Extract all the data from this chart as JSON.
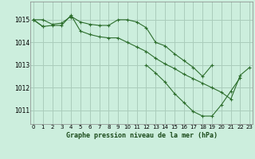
{
  "title": "Graphe pression niveau de la mer (hPa)",
  "bg_color": "#cceedd",
  "grid_color": "#aaccbb",
  "line_color": "#2d6e2d",
  "x_ticks": [
    0,
    1,
    2,
    3,
    4,
    5,
    6,
    7,
    8,
    9,
    10,
    11,
    12,
    13,
    14,
    15,
    16,
    17,
    18,
    19,
    20,
    21,
    22,
    23
  ],
  "y_ticks": [
    1011,
    1012,
    1013,
    1014,
    1015
  ],
  "ylim": [
    1010.4,
    1015.8
  ],
  "xlim": [
    -0.3,
    23.3
  ],
  "line1_x": [
    0,
    1,
    2,
    3,
    4,
    5,
    6,
    7,
    8,
    9,
    10,
    11,
    12,
    13,
    14,
    15,
    16,
    17,
    18,
    19
  ],
  "line1_y": [
    1015.0,
    1015.0,
    1014.8,
    1014.85,
    1015.15,
    1014.9,
    1014.8,
    1014.75,
    1014.75,
    1015.0,
    1015.0,
    1014.9,
    1014.65,
    1014.0,
    1013.85,
    1013.5,
    1013.2,
    1012.9,
    1012.5,
    1013.0
  ],
  "line2_x": [
    0,
    1,
    2,
    3,
    4,
    5,
    6,
    7,
    8,
    9,
    10,
    11,
    12,
    13,
    14,
    15,
    16,
    17,
    18,
    19,
    20,
    21,
    22,
    23
  ],
  "line2_y": [
    1015.0,
    1014.7,
    1014.75,
    1014.75,
    1015.2,
    1014.5,
    1014.35,
    1014.25,
    1014.2,
    1014.2,
    1014.0,
    1013.8,
    1013.6,
    1013.3,
    1013.05,
    1012.85,
    1012.6,
    1012.4,
    1012.2,
    1012.0,
    1011.8,
    1011.5,
    1012.55,
    1012.9
  ],
  "line3_segments": [
    {
      "x": [
        0,
        1
      ],
      "y": [
        1015.0,
        1014.7
      ]
    },
    {
      "x": [
        4
      ],
      "y": [
        1015.1
      ]
    },
    {
      "x": [
        12,
        13,
        14,
        15,
        16,
        17,
        18,
        19,
        20,
        21,
        22
      ],
      "y": [
        1013.0,
        1012.65,
        1012.25,
        1011.75,
        1011.35,
        1010.95,
        1010.75,
        1010.75,
        1011.25,
        1011.85,
        1012.45
      ]
    }
  ]
}
